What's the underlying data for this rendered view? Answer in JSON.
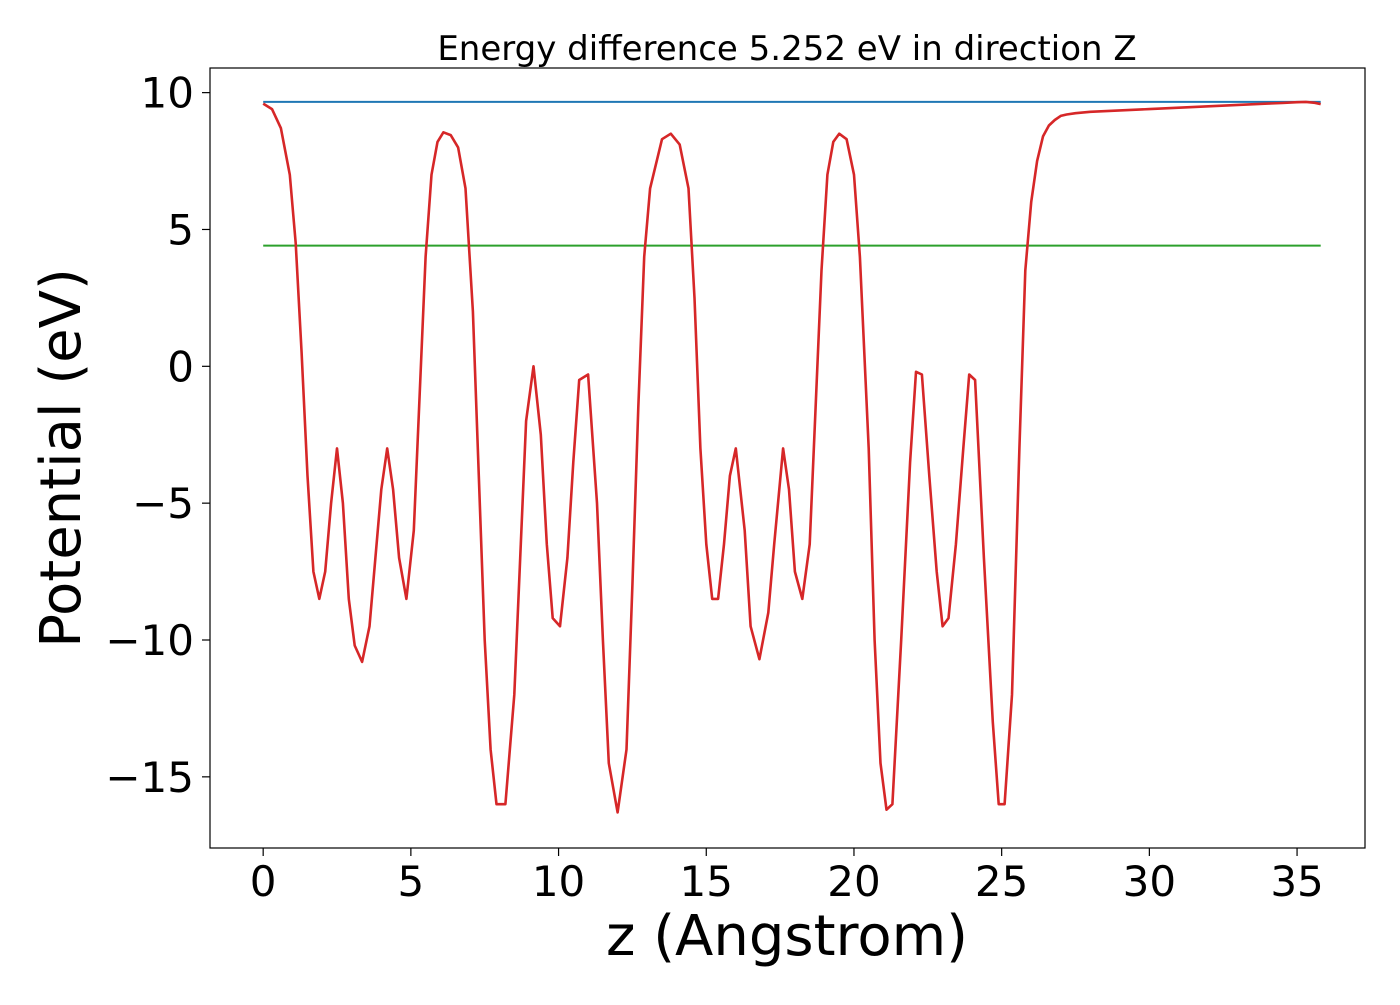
{
  "chart_data": {
    "type": "line",
    "title": "Energy difference 5.252 eV in direction Z",
    "xlabel": "z (Angstrom)",
    "ylabel": "Potential (eV)",
    "xlim": [
      -1.8,
      37.3
    ],
    "ylim": [
      -17.6,
      10.9
    ],
    "xticks": [
      0,
      5,
      10,
      15,
      20,
      25,
      30,
      35
    ],
    "xtick_labels": [
      "0",
      "5",
      "10",
      "15",
      "20",
      "25",
      "30",
      "35"
    ],
    "yticks": [
      10,
      5,
      0,
      -5,
      -10,
      -15
    ],
    "ytick_labels": [
      "10",
      "5",
      "0",
      "−5",
      "−10",
      "−15"
    ],
    "grid": false,
    "legend": "none",
    "series": [
      {
        "color": "#1f77b4",
        "x": [
          0,
          35.8
        ],
        "y": [
          9.66,
          9.66
        ]
      },
      {
        "color": "#2ca02c",
        "x": [
          0,
          35.8
        ],
        "y": [
          4.41,
          4.41
        ]
      },
      {
        "color": "#d62728",
        "x": [
          0,
          0.3,
          0.6,
          0.9,
          1.1,
          1.3,
          1.5,
          1.7,
          1.9,
          2.1,
          2.3,
          2.5,
          2.7,
          2.9,
          3.1,
          3.35,
          3.6,
          3.8,
          4.0,
          4.2,
          4.4,
          4.6,
          4.85,
          5.1,
          5.3,
          5.5,
          5.7,
          5.9,
          6.1,
          6.35,
          6.6,
          6.85,
          7.1,
          7.3,
          7.5,
          7.7,
          7.9,
          8.2,
          8.5,
          8.7,
          8.9,
          9.15,
          9.4,
          9.6,
          9.8,
          10.05,
          10.3,
          10.5,
          10.7,
          11.0,
          11.3,
          11.5,
          11.7,
          12.0,
          12.3,
          12.5,
          12.7,
          12.9,
          13.1,
          13.5,
          13.8,
          14.1,
          14.4,
          14.6,
          14.8,
          15.0,
          15.2,
          15.4,
          15.6,
          15.8,
          16.0,
          16.3,
          16.5,
          16.8,
          17.1,
          17.3,
          17.6,
          17.8,
          18.0,
          18.25,
          18.5,
          18.7,
          18.9,
          19.1,
          19.3,
          19.5,
          19.75,
          20.0,
          20.2,
          20.5,
          20.7,
          20.9,
          21.1,
          21.3,
          21.6,
          21.9,
          22.1,
          22.3,
          22.55,
          22.8,
          23.0,
          23.2,
          23.45,
          23.7,
          23.9,
          24.1,
          24.4,
          24.7,
          24.9,
          25.1,
          25.35,
          25.6,
          25.8,
          26.0,
          26.2,
          26.4,
          26.6,
          26.8,
          27.0,
          27.2,
          27.5,
          28.0,
          29.0,
          30.0,
          31.0,
          32.0,
          33.0,
          34.0,
          34.5,
          35.0,
          35.3,
          35.6,
          35.8
        ],
        "y": [
          9.6,
          9.4,
          8.7,
          7.0,
          4.5,
          0.5,
          -4.0,
          -7.5,
          -8.5,
          -7.5,
          -5.0,
          -3.0,
          -5.0,
          -8.5,
          -10.2,
          -10.8,
          -9.5,
          -7.0,
          -4.5,
          -3.0,
          -4.5,
          -7.0,
          -8.5,
          -6.0,
          -1.0,
          4.0,
          7.0,
          8.2,
          8.55,
          8.45,
          8.0,
          6.5,
          2.0,
          -4.0,
          -10.0,
          -14.0,
          -16.0,
          -16.0,
          -12.0,
          -7.0,
          -2.0,
          0.0,
          -2.5,
          -6.5,
          -9.2,
          -9.5,
          -7.0,
          -3.5,
          -0.5,
          -0.3,
          -5.0,
          -10.0,
          -14.5,
          -16.3,
          -14.0,
          -8.0,
          -1.5,
          4.0,
          6.5,
          8.3,
          8.5,
          8.1,
          6.5,
          2.5,
          -3.0,
          -6.5,
          -8.5,
          -8.5,
          -6.5,
          -4.0,
          -3.0,
          -6.0,
          -9.5,
          -10.7,
          -9.0,
          -6.5,
          -3.0,
          -4.5,
          -7.5,
          -8.5,
          -6.5,
          -1.5,
          3.5,
          7.0,
          8.2,
          8.5,
          8.3,
          7.0,
          4.0,
          -3.0,
          -10.0,
          -14.5,
          -16.2,
          -16.0,
          -10.0,
          -3.5,
          -0.2,
          -0.3,
          -4.0,
          -7.5,
          -9.5,
          -9.2,
          -6.5,
          -3.0,
          -0.3,
          -0.5,
          -7.0,
          -13.0,
          -16.0,
          -16.0,
          -12.0,
          -3.0,
          3.5,
          6.0,
          7.5,
          8.4,
          8.8,
          9.0,
          9.15,
          9.2,
          9.25,
          9.3,
          9.35,
          9.4,
          9.45,
          9.5,
          9.55,
          9.6,
          9.62,
          9.65,
          9.66,
          9.63,
          9.58
        ]
      }
    ]
  }
}
